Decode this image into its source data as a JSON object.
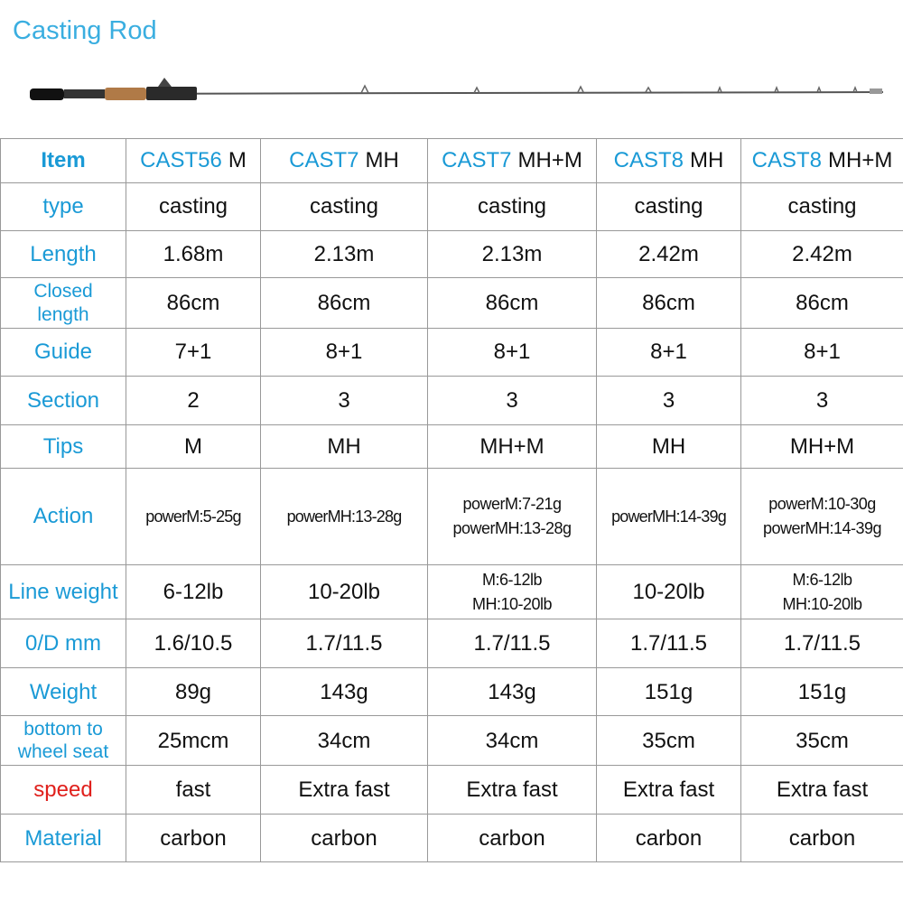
{
  "title": "Casting Rod",
  "table": {
    "header": {
      "label": "Item",
      "columns": [
        {
          "model": "CAST56",
          "power": "M"
        },
        {
          "model": "CAST7",
          "power": "MH"
        },
        {
          "model": "CAST7",
          "power": "MH+M"
        },
        {
          "model": "CAST8",
          "power": "MH"
        },
        {
          "model": "CAST8",
          "power": "MH+M"
        }
      ]
    },
    "rows": [
      {
        "label": "type",
        "cells": [
          "casting",
          "casting",
          "casting",
          "casting",
          "casting"
        ]
      },
      {
        "label": "Length",
        "cells": [
          "1.68m",
          "2.13m",
          "2.13m",
          "2.42m",
          "2.42m"
        ]
      },
      {
        "label": [
          "Closed",
          "length"
        ],
        "cells": [
          "86cm",
          "86cm",
          "86cm",
          "86cm",
          "86cm"
        ]
      },
      {
        "label": "Guide",
        "cells": [
          "7+1",
          "8+1",
          "8+1",
          "8+1",
          "8+1"
        ]
      },
      {
        "label": "Section",
        "cells": [
          "2",
          "3",
          "3",
          "3",
          "3"
        ]
      },
      {
        "label": "Tips",
        "cells": [
          "M",
          "MH",
          "MH+M",
          "MH",
          "MH+M"
        ]
      },
      {
        "label": "Action",
        "cells": [
          "powerM:5-25g",
          "powerMH:13-28g",
          [
            "powerM:7-21g",
            "powerMH:13-28g"
          ],
          "powerMH:14-39g",
          [
            "powerM:10-30g",
            "powerMH:14-39g"
          ]
        ]
      },
      {
        "label": "Line weight",
        "cells": [
          "6-12lb",
          "10-20lb",
          [
            "M:6-12lb",
            "MH:10-20lb"
          ],
          "10-20lb",
          [
            "M:6-12lb",
            "MH:10-20lb"
          ]
        ]
      },
      {
        "label": "0/D mm",
        "cells": [
          "1.6/10.5",
          "1.7/11.5",
          "1.7/11.5",
          "1.7/11.5",
          "1.7/11.5"
        ]
      },
      {
        "label": "Weight",
        "cells": [
          "89g",
          "143g",
          "143g",
          "151g",
          "151g"
        ]
      },
      {
        "label": [
          "bottom to",
          "wheel seat"
        ],
        "cells": [
          "25mcm",
          "34cm",
          "34cm",
          "35cm",
          "35cm"
        ]
      },
      {
        "label": "speed",
        "label_color": "#e0201c",
        "cells": [
          "fast",
          "Extra fast",
          "Extra fast",
          "Extra fast",
          "Extra fast"
        ]
      },
      {
        "label": "Material",
        "cells": [
          "carbon",
          "carbon",
          "carbon",
          "carbon",
          "carbon"
        ]
      }
    ]
  }
}
